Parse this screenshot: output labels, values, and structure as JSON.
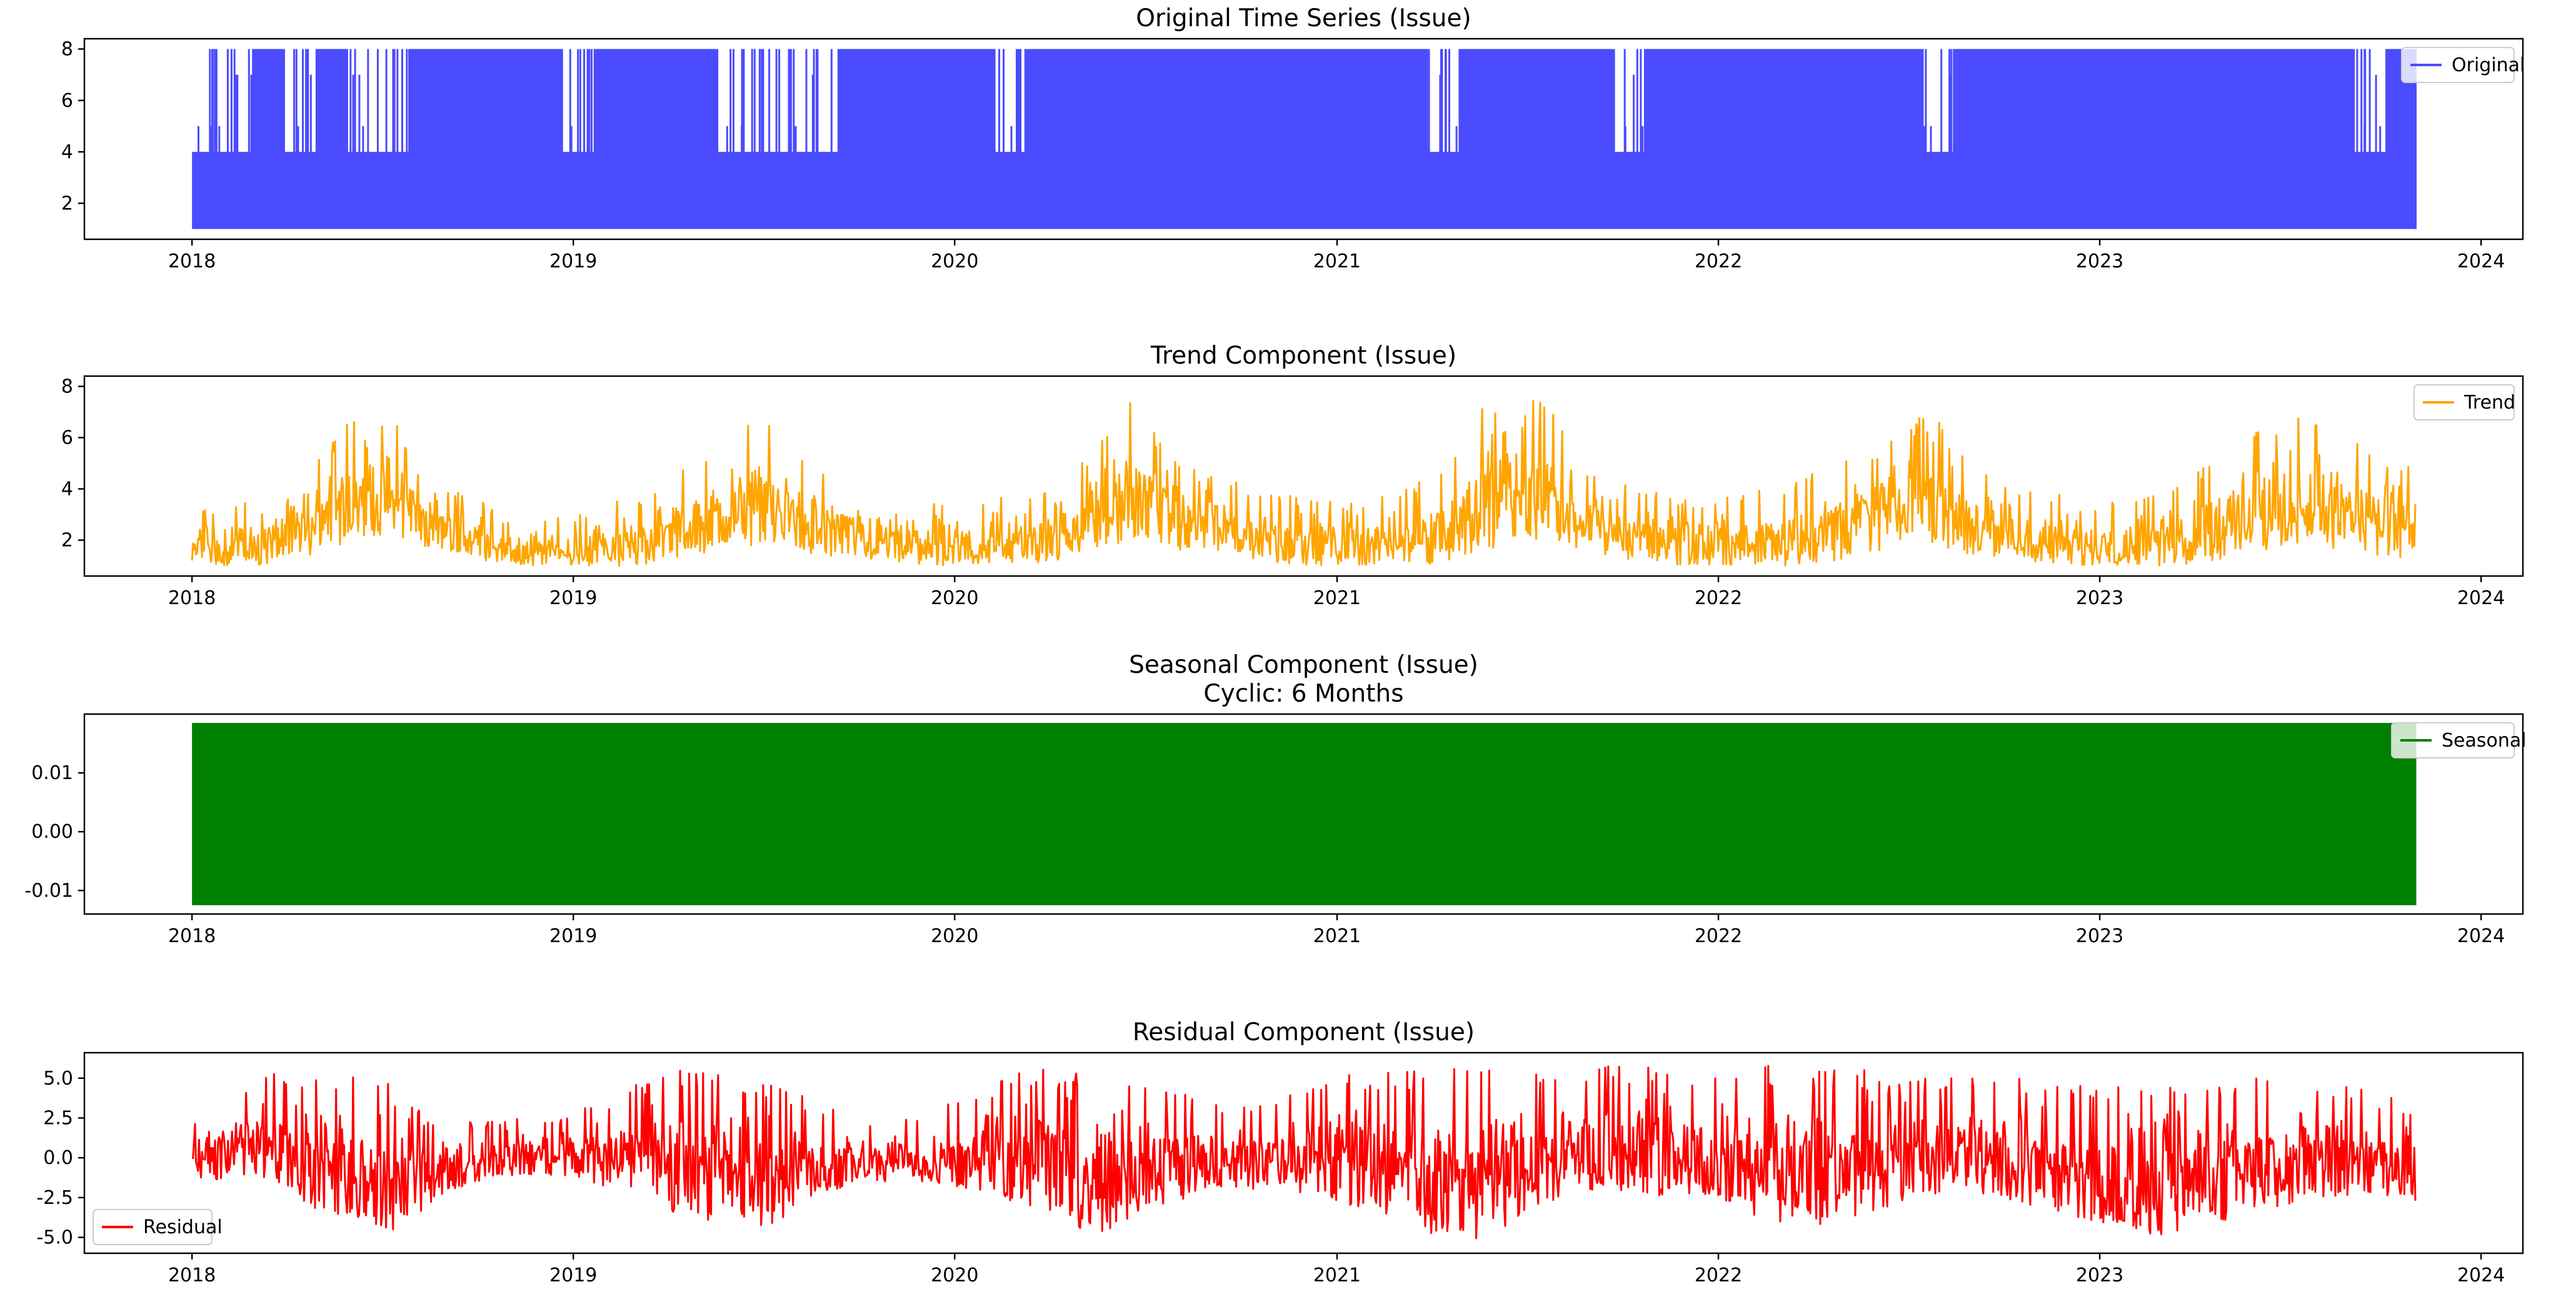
{
  "chart_data": [
    {
      "type": "line",
      "title": "Original Time Series (Issue)",
      "subtitle": "",
      "xlabel": "",
      "ylabel": "",
      "x_ticks": [
        "2018",
        "2019",
        "2020",
        "2021",
        "2022",
        "2023",
        "2024"
      ],
      "xlim": [
        "2017-09-20",
        "2024-02-10"
      ],
      "y_ticks": [
        "2",
        "4",
        "6",
        "8"
      ],
      "ylim": [
        0.6,
        8.4
      ],
      "grid": false,
      "legend_position": "top-right",
      "series": [
        {
          "name": "Original",
          "color": "#4b4bff",
          "x_start": "2018-01-01",
          "x_end": "2023-10-31",
          "baseline": 1,
          "values": [
            4,
            4,
            8,
            4,
            8,
            4,
            4,
            8,
            8,
            8,
            8,
            8,
            4,
            8,
            8,
            8,
            8,
            4,
            4,
            4,
            4,
            8,
            8,
            8,
            8,
            8,
            4,
            8,
            8,
            8,
            8,
            8,
            8,
            8,
            8,
            8,
            8,
            8,
            8,
            8,
            4,
            8,
            8,
            8,
            8,
            8,
            4,
            8,
            8,
            8,
            8,
            8,
            8,
            8,
            8,
            8,
            4,
            8,
            8,
            8,
            8,
            8,
            8,
            8,
            8,
            8,
            8,
            8,
            8,
            8,
            4,
            8
          ]
        }
      ]
    },
    {
      "type": "line",
      "title": "Trend Component (Issue)",
      "subtitle": "",
      "xlabel": "",
      "ylabel": "",
      "x_ticks": [
        "2018",
        "2019",
        "2020",
        "2021",
        "2022",
        "2023",
        "2024"
      ],
      "xlim": [
        "2017-09-20",
        "2024-02-10"
      ],
      "y_ticks": [
        "2",
        "4",
        "6",
        "8"
      ],
      "ylim": [
        0.6,
        8.4
      ],
      "grid": false,
      "legend_position": "top-right",
      "series": [
        {
          "name": "Trend",
          "color": "#ffa500",
          "x_start": "2018-01-01",
          "x_end": "2023-10-31",
          "lower": [
            1.0,
            1.0,
            1.0,
            1.2,
            1.5,
            2.0,
            2.2,
            1.8,
            1.5,
            1.2,
            1.0,
            1.0,
            1.0,
            1.0,
            1.0,
            1.2,
            1.5,
            1.8,
            1.8,
            1.5,
            1.3,
            1.2,
            1.0,
            1.0,
            1.0,
            1.0,
            1.0,
            1.2,
            1.5,
            1.8,
            1.8,
            1.5,
            1.3,
            1.2,
            1.0,
            1.0,
            1.0,
            1.0,
            1.0,
            1.2,
            1.5,
            1.8,
            2.0,
            1.6,
            1.3,
            1.2,
            1.0,
            1.0,
            1.0,
            1.0,
            1.0,
            1.2,
            1.5,
            1.8,
            1.8,
            1.5,
            1.3,
            1.2,
            1.0,
            1.0,
            1.0,
            1.0,
            1.0,
            1.2,
            1.5,
            1.8,
            1.8,
            1.5,
            1.3,
            1.2
          ],
          "upper": [
            3.0,
            3.5,
            3.5,
            4.0,
            5.5,
            6.8,
            7.5,
            5.0,
            4.0,
            3.5,
            3.0,
            2.8,
            3.0,
            3.5,
            3.8,
            4.5,
            5.5,
            6.5,
            6.5,
            5.0,
            4.5,
            4.0,
            3.8,
            3.5,
            3.5,
            3.8,
            4.0,
            4.5,
            5.5,
            8.0,
            6.0,
            4.8,
            4.5,
            4.0,
            3.8,
            3.5,
            3.5,
            3.8,
            4.2,
            5.0,
            8.0,
            6.5,
            8.0,
            5.0,
            4.5,
            4.0,
            3.8,
            3.5,
            3.8,
            4.0,
            4.5,
            5.0,
            6.0,
            6.5,
            7.0,
            5.5,
            4.5,
            4.0,
            3.8,
            3.5,
            3.5,
            3.8,
            4.5,
            5.5,
            6.5,
            7.0,
            6.5,
            6.0,
            5.5,
            5.0
          ]
        }
      ]
    },
    {
      "type": "line",
      "title": "Seasonal Component (Issue)",
      "subtitle": "Cyclic: 6 Months",
      "xlabel": "",
      "ylabel": "",
      "x_ticks": [
        "2018",
        "2019",
        "2020",
        "2021",
        "2022",
        "2023",
        "2024"
      ],
      "xlim": [
        "2017-09-20",
        "2024-02-10"
      ],
      "y_ticks": [
        "0.01",
        "0.00",
        "-0.01"
      ],
      "ylim": [
        -0.014,
        0.02
      ],
      "grid": false,
      "legend_position": "top-right",
      "series": [
        {
          "name": "Seasonal",
          "color": "#008000",
          "x_start": "2018-01-01",
          "x_end": "2023-10-31",
          "min": -0.0125,
          "max": 0.0185
        }
      ]
    },
    {
      "type": "line",
      "title": "Residual Component (Issue)",
      "subtitle": "",
      "xlabel": "",
      "ylabel": "",
      "x_ticks": [
        "2018",
        "2019",
        "2020",
        "2021",
        "2022",
        "2023",
        "2024"
      ],
      "xlim": [
        "2017-09-20",
        "2024-02-10"
      ],
      "y_ticks": [
        "5.0",
        "2.5",
        "0.0",
        "-2.5",
        "-5.0"
      ],
      "ylim": [
        -6.0,
        6.6
      ],
      "grid": false,
      "legend_position": "bottom-left",
      "series": [
        {
          "name": "Residual",
          "color": "#ff0000",
          "x_start": "2018-01-01",
          "x_end": "2023-10-31",
          "lower": [
            -1.5,
            -1.5,
            -1.0,
            -2.0,
            -3.5,
            -4.5,
            -5.0,
            -3.5,
            -2.0,
            -1.5,
            -1.2,
            -1.2,
            -1.5,
            -2.0,
            -2.5,
            -3.5,
            -4.0,
            -4.5,
            -4.2,
            -3.0,
            -2.0,
            -1.5,
            -1.5,
            -1.8,
            -2.0,
            -2.5,
            -3.0,
            -3.5,
            -5.5,
            -4.0,
            -3.0,
            -2.5,
            -2.0,
            -2.0,
            -2.2,
            -2.5,
            -3.0,
            -3.5,
            -4.5,
            -5.0,
            -5.5,
            -4.0,
            -3.0,
            -2.5,
            -2.0,
            -2.2,
            -2.5,
            -3.0,
            -3.5,
            -4.0,
            -4.5,
            -4.0,
            -3.5,
            -3.0,
            -2.5,
            -2.2,
            -2.5,
            -3.0,
            -3.5,
            -4.0,
            -4.5,
            -5.0,
            -4.5,
            -4.0,
            -3.5,
            -3.0,
            -2.5,
            -2.5,
            -2.5,
            -3.0
          ],
          "upper": [
            2.5,
            4.0,
            5.0,
            5.5,
            5.5,
            5.5,
            5.0,
            3.0,
            2.5,
            2.5,
            2.5,
            2.5,
            3.0,
            4.5,
            5.0,
            5.5,
            5.5,
            5.5,
            5.0,
            4.0,
            3.0,
            2.5,
            2.5,
            3.0,
            4.0,
            5.0,
            5.5,
            5.8,
            5.8,
            5.5,
            5.0,
            4.0,
            3.5,
            3.5,
            4.0,
            5.0,
            5.5,
            5.5,
            5.5,
            5.8,
            5.8,
            5.5,
            5.5,
            5.5,
            5.8,
            5.8,
            5.5,
            5.5,
            5.5,
            5.8,
            5.8,
            5.5,
            5.5,
            5.0,
            5.0,
            5.0,
            5.0,
            5.0,
            5.0,
            5.0,
            5.0,
            5.0,
            5.0,
            5.0,
            5.0,
            5.0,
            5.0,
            4.5,
            4.0,
            3.5
          ]
        }
      ]
    }
  ]
}
